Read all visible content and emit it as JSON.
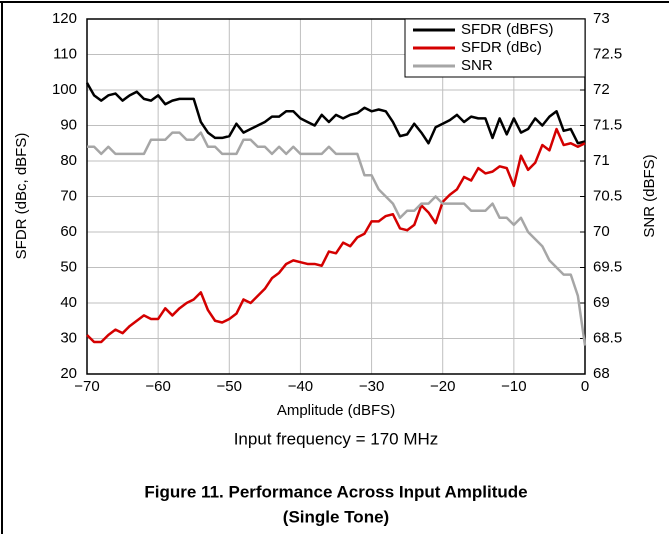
{
  "chart_data": {
    "type": "line",
    "x": [
      -70,
      -69,
      -68,
      -67,
      -66,
      -65,
      -64,
      -63,
      -62,
      -61,
      -60,
      -59,
      -58,
      -57,
      -56,
      -55,
      -54,
      -53,
      -52,
      -51,
      -50,
      -49,
      -48,
      -47,
      -46,
      -45,
      -44,
      -43,
      -42,
      -41,
      -40,
      -39,
      -38,
      -37,
      -36,
      -35,
      -34,
      -33,
      -32,
      -31,
      -30,
      -29,
      -28,
      -27,
      -26,
      -25,
      -24,
      -23,
      -22,
      -21,
      -20,
      -19,
      -18,
      -17,
      -16,
      -15,
      -14,
      -13,
      -12,
      -11,
      -10,
      -9,
      -8,
      -7,
      -6,
      -5,
      -4,
      -3,
      -2,
      -1,
      0
    ],
    "series": [
      {
        "name": "SFDR (dBFS)",
        "color": "#000000",
        "values": [
          102,
          98.5,
          97,
          98.5,
          99,
          97,
          98.5,
          99.5,
          97.5,
          97,
          98.5,
          96,
          97,
          97.5,
          97.5,
          97.5,
          91,
          88,
          86.5,
          86.5,
          87,
          90.5,
          88,
          89,
          90,
          91,
          92.5,
          92.5,
          94,
          94,
          92,
          91,
          90,
          93,
          91,
          93,
          92,
          93,
          93.5,
          95,
          94,
          94.5,
          94,
          91,
          87,
          87.5,
          90.5,
          88,
          85,
          89.5,
          90.5,
          91.5,
          93,
          91,
          92.5,
          92,
          92,
          86.5,
          92,
          87.5,
          92,
          88,
          89,
          92,
          90,
          92.5,
          94,
          88.5,
          89,
          85,
          85.5
        ]
      },
      {
        "name": "SFDR (dBc)",
        "color": "#d40000",
        "values": [
          31,
          29,
          29,
          31,
          32.5,
          31.5,
          33.5,
          35,
          36.5,
          35.5,
          35.5,
          38.5,
          36.5,
          38.5,
          40,
          41,
          43,
          38,
          35,
          34.5,
          35.5,
          37,
          41,
          40,
          42,
          44,
          47,
          48.5,
          51,
          52,
          51.5,
          51,
          51,
          50.5,
          54.5,
          54,
          57,
          56,
          58.5,
          59.5,
          63,
          63,
          64.5,
          65,
          61,
          60.5,
          62,
          67.5,
          65.5,
          62.5,
          68.5,
          70.5,
          72,
          75.5,
          74.5,
          78,
          76.5,
          77,
          78.5,
          78,
          73,
          81.5,
          77.5,
          79.5,
          84.5,
          83,
          89,
          84.5,
          85,
          84,
          85
        ]
      },
      {
        "name": "SNR",
        "color": "#a6a6a6",
        "axis": "y2",
        "values": [
          71.2,
          71.2,
          71.1,
          71.2,
          71.1,
          71.1,
          71.1,
          71.1,
          71.1,
          71.3,
          71.3,
          71.3,
          71.4,
          71.4,
          71.3,
          71.3,
          71.4,
          71.2,
          71.2,
          71.1,
          71.1,
          71.1,
          71.3,
          71.3,
          71.2,
          71.2,
          71.1,
          71.2,
          71.1,
          71.2,
          71.1,
          71.1,
          71.1,
          71.1,
          71.2,
          71.1,
          71.1,
          71.1,
          71.1,
          70.8,
          70.8,
          70.6,
          70.5,
          70.4,
          70.2,
          70.3,
          70.3,
          70.4,
          70.4,
          70.5,
          70.4,
          70.4,
          70.4,
          70.4,
          70.3,
          70.3,
          70.3,
          70.4,
          70.2,
          70.2,
          70.1,
          70.2,
          70.0,
          69.9,
          69.8,
          69.6,
          69.5,
          69.4,
          69.4,
          69.1,
          68.4
        ]
      }
    ],
    "xlim": [
      -70,
      0
    ],
    "xticks": [
      {
        "value": -70,
        "label": "−70"
      },
      {
        "value": -60,
        "label": "−60"
      },
      {
        "value": -50,
        "label": "−50"
      },
      {
        "value": -40,
        "label": "−40"
      },
      {
        "value": -30,
        "label": "−30"
      },
      {
        "value": -20,
        "label": "−20"
      },
      {
        "value": -10,
        "label": "−10"
      },
      0
    ],
    "ylim": [
      20,
      120
    ],
    "yticks": [
      20,
      30,
      40,
      50,
      60,
      70,
      80,
      90,
      100,
      110,
      120
    ],
    "y2lim": [
      68,
      73
    ],
    "y2ticks": [
      68,
      68.5,
      69,
      69.5,
      70,
      70.5,
      71,
      71.5,
      72,
      72.5,
      73
    ],
    "xlabel": "Amplitude (dBFS)",
    "ylabel": "SFDR (dBc, dBFS)",
    "y2label": "SNR (dBFS)",
    "note": "Input frequency = 170 MHz",
    "caption": [
      "Figure 11. Performance Across Input Amplitude",
      "(Single Tone)"
    ],
    "grid": true,
    "legend": "upper right"
  }
}
